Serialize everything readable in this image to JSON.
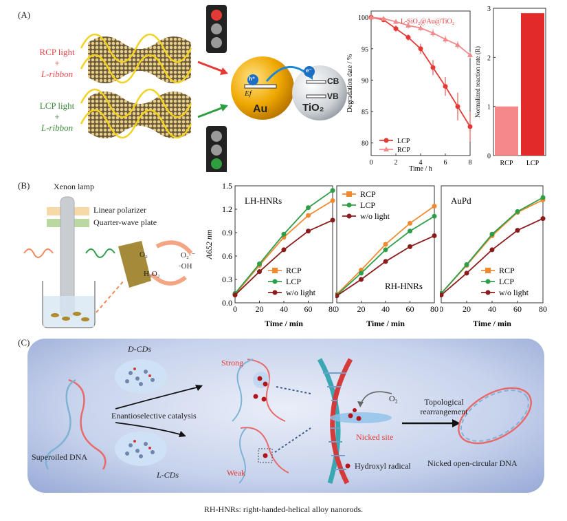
{
  "panelA": {
    "label": "(A)",
    "rcp_text": [
      "RCP light",
      "+",
      "L-ribbon"
    ],
    "lcp_text": [
      "LCP light",
      "+",
      "L-ribbon"
    ],
    "au_label": "Au",
    "tio2_label": "TiO₂",
    "hole_label": "h⁺",
    "electron_label": "e⁻",
    "ef_label": "Ef",
    "cb_label": "CB",
    "vb_label": "VB",
    "colors": {
      "rcp": "#e8474b",
      "lcp": "#3a8a3a",
      "gold": "#e8a400",
      "red_light": "#e53935",
      "green_light": "#2e9e3e"
    }
  },
  "panelB": {
    "label": "(B)",
    "lamp": "Xenon lamp",
    "polarizer": "Linear polarizer",
    "waveplate": "Quarter-wave plate",
    "o2": "O₂",
    "h2o2": "H₂O₂",
    "o2rad": "O₂·⁻",
    "oh": "·OH"
  },
  "panelC": {
    "label": "(C)",
    "supercoiled": "Superoiled DNA",
    "dcds": "D-CDs",
    "lcds": "L-CDs",
    "enantio": "Enantioselective catalysis",
    "strong": "Strong",
    "weak": "Weak",
    "o2": "O₂",
    "nicked_site": "Nicked site",
    "hydroxyl": "Hydroxyl radical",
    "topo1": "Topological",
    "topo2": "rearrangement",
    "nicked_dna": "Nicked open-circular DNA"
  },
  "caption": "RH-HNRs: right-handed-helical alloy nanorods.",
  "chart_data": [
    {
      "type": "line",
      "title": "L-SiO₂@Au@TiO₂",
      "xlabel": "Time / h",
      "ylabel": "Degradation date / %",
      "xlim": [
        0,
        8
      ],
      "ylim": [
        78,
        101
      ],
      "xticks": [
        0,
        2,
        4,
        6,
        8
      ],
      "yticks": [
        80,
        85,
        90,
        95,
        100
      ],
      "legend": "bottom-left",
      "series": [
        {
          "name": "LCP",
          "color": "#e53935",
          "marker": "circle",
          "x": [
            0,
            1,
            2,
            3,
            4,
            5,
            6,
            7,
            8
          ],
          "y": [
            100,
            99.6,
            98.2,
            96.8,
            95.0,
            92.0,
            89.0,
            85.8,
            82.6
          ],
          "err": [
            0.3,
            0.4,
            0.5,
            0.5,
            0.8,
            1.2,
            1.5,
            2.2,
            2.4
          ]
        },
        {
          "name": "RCP",
          "color": "#f08a8a",
          "marker": "triangle",
          "x": [
            0,
            1,
            2,
            3,
            4,
            5,
            6,
            7,
            8
          ],
          "y": [
            100,
            99.8,
            99.3,
            98.7,
            98.3,
            97.5,
            96.5,
            95.6,
            94.0
          ],
          "err": [
            0.2,
            0.3,
            0.4,
            0.5,
            0.5,
            0.6,
            0.6,
            0.6,
            0.5
          ]
        }
      ]
    },
    {
      "type": "bar",
      "ylabel": "Normalized reaction rate (R)",
      "categories": [
        "RCP",
        "LCP"
      ],
      "values": [
        1.0,
        2.9
      ],
      "colors": [
        "#f4888a",
        "#e32a2a"
      ],
      "ylim": [
        0,
        3
      ],
      "yticks": [
        0,
        1,
        2,
        3
      ]
    },
    {
      "type": "line",
      "title": "LH-HNRs",
      "ylabel": "A652 nm",
      "xlabel": "Time / min",
      "xlim": [
        0,
        80
      ],
      "ylim": [
        0,
        1.5
      ],
      "xticks": [
        0,
        20,
        40,
        60,
        80
      ],
      "yticks": [
        "0.0",
        "0.3",
        "0.6",
        "0.9",
        "1.2",
        "1.5"
      ],
      "legend": "bottom-right",
      "series": [
        {
          "name": "RCP",
          "color": "#f08a30",
          "x": [
            0,
            20,
            40,
            60,
            80
          ],
          "y": [
            0.11,
            0.48,
            0.84,
            1.12,
            1.31
          ]
        },
        {
          "name": "LCP",
          "color": "#2f9e4a",
          "x": [
            0,
            20,
            40,
            60,
            80
          ],
          "y": [
            0.12,
            0.5,
            0.88,
            1.22,
            1.44
          ]
        },
        {
          "name": "w/o light",
          "color": "#8a1c1c",
          "x": [
            0,
            20,
            40,
            60,
            80
          ],
          "y": [
            0.1,
            0.4,
            0.68,
            0.92,
            1.06
          ]
        }
      ]
    },
    {
      "type": "line",
      "title": "RH-HNRs",
      "xlabel": "Time / min",
      "xlim": [
        0,
        80
      ],
      "ylim": [
        0,
        1.5
      ],
      "xticks": [
        0,
        20,
        40,
        60,
        80
      ],
      "legend": "top-left",
      "series": [
        {
          "name": "RCP",
          "color": "#f08a30",
          "x": [
            0,
            20,
            40,
            60,
            80
          ],
          "y": [
            0.11,
            0.42,
            0.75,
            1.02,
            1.24
          ]
        },
        {
          "name": "LCP",
          "color": "#2f9e4a",
          "x": [
            0,
            20,
            40,
            60,
            80
          ],
          "y": [
            0.1,
            0.38,
            0.68,
            0.92,
            1.11
          ]
        },
        {
          "name": "w/o light",
          "color": "#8a1c1c",
          "x": [
            0,
            20,
            40,
            60,
            80
          ],
          "y": [
            0.09,
            0.3,
            0.53,
            0.72,
            0.86
          ]
        }
      ]
    },
    {
      "type": "line",
      "title": "AuPd",
      "xlabel": "Time / min",
      "xlim": [
        0,
        80
      ],
      "ylim": [
        0,
        1.5
      ],
      "xticks": [
        0,
        20,
        40,
        60,
        80
      ],
      "legend": "bottom-right",
      "series": [
        {
          "name": "RCP",
          "color": "#f08a30",
          "x": [
            0,
            20,
            40,
            60,
            80
          ],
          "y": [
            0.12,
            0.48,
            0.86,
            1.16,
            1.32
          ]
        },
        {
          "name": "LCP",
          "color": "#2f9e4a",
          "x": [
            0,
            20,
            40,
            60,
            80
          ],
          "y": [
            0.12,
            0.49,
            0.88,
            1.17,
            1.35
          ]
        },
        {
          "name": "w/o light",
          "color": "#8a1c1c",
          "x": [
            0,
            20,
            40,
            60,
            80
          ],
          "y": [
            0.1,
            0.38,
            0.68,
            0.93,
            1.08
          ]
        }
      ]
    }
  ]
}
